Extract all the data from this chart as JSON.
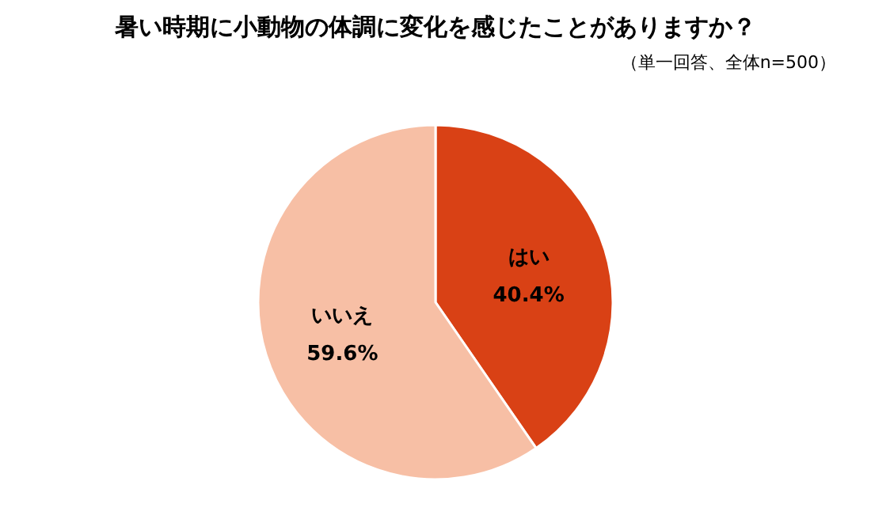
{
  "chart_data": {
    "type": "pie",
    "title": "暑い時期に小動物の体調に変化を感じたことがありますか？",
    "subtitle": "（単一回答、全体n=500）",
    "categories": [
      "はい",
      "いいえ"
    ],
    "values": [
      40.4,
      59.6
    ],
    "colors": [
      "#d94115",
      "#f7bfa5"
    ],
    "value_labels": [
      "40.4%",
      "59.6%"
    ]
  }
}
